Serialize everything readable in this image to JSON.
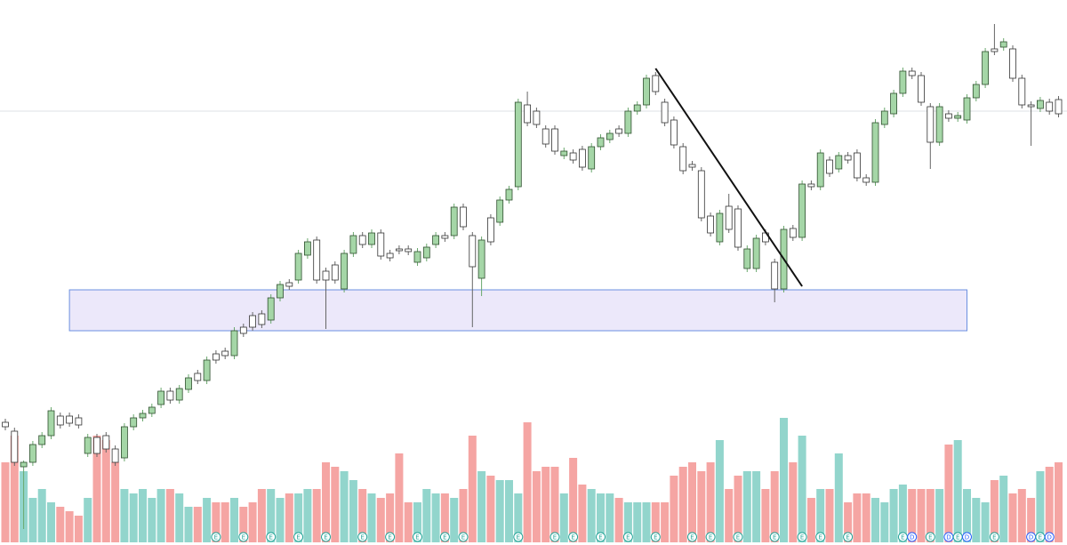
{
  "chart_data": {
    "type": "candlestick",
    "ylim": [
      0,
      613
    ],
    "vlim": [
      0,
      165
    ],
    "up_color": "#a5d6a7",
    "down_color": "#ffffff",
    "vol_up_color": "#92d5cc",
    "vol_down_color": "#f5a5a3",
    "candles": [
      [
        138,
        142,
        129,
        133
      ],
      [
        128,
        132,
        89,
        93
      ],
      [
        88,
        95,
        18,
        93
      ],
      [
        93,
        117,
        89,
        113
      ],
      [
        113,
        127,
        109,
        123
      ],
      [
        123,
        155,
        119,
        151
      ],
      [
        145,
        149,
        131,
        135
      ],
      [
        145,
        149,
        133,
        137
      ],
      [
        143,
        147,
        131,
        135
      ],
      [
        103,
        125,
        99,
        121
      ],
      [
        121,
        125,
        99,
        103
      ],
      [
        123,
        127,
        104,
        108
      ],
      [
        108,
        112,
        89,
        93
      ],
      [
        98,
        137,
        94,
        133
      ],
      [
        133,
        147,
        129,
        143
      ],
      [
        143,
        152,
        139,
        148
      ],
      [
        148,
        159,
        144,
        155
      ],
      [
        158,
        177,
        154,
        173
      ],
      [
        173,
        177,
        159,
        163
      ],
      [
        163,
        180,
        159,
        176
      ],
      [
        175,
        192,
        171,
        188
      ],
      [
        193,
        197,
        181,
        185
      ],
      [
        185,
        212,
        181,
        208
      ],
      [
        215,
        219,
        204,
        208
      ],
      [
        218,
        222,
        209,
        213
      ],
      [
        213,
        245,
        209,
        241
      ],
      [
        245,
        249,
        234,
        238
      ],
      [
        258,
        262,
        241,
        245
      ],
      [
        260,
        264,
        244,
        248
      ],
      [
        253,
        282,
        249,
        278
      ],
      [
        278,
        297,
        274,
        293
      ],
      [
        295,
        299,
        287,
        291
      ],
      [
        298,
        332,
        294,
        328
      ],
      [
        326,
        345,
        322,
        341
      ],
      [
        343,
        347,
        294,
        298
      ],
      [
        308,
        312,
        243,
        298
      ],
      [
        315,
        319,
        294,
        298
      ],
      [
        288,
        332,
        284,
        328
      ],
      [
        328,
        352,
        324,
        348
      ],
      [
        348,
        352,
        334,
        338
      ],
      [
        338,
        355,
        334,
        351
      ],
      [
        351,
        355,
        321,
        325
      ],
      [
        328,
        332,
        319,
        323
      ],
      [
        333,
        337,
        327,
        331
      ],
      [
        333,
        337,
        326,
        330
      ],
      [
        318,
        334,
        314,
        330
      ],
      [
        323,
        339,
        319,
        335
      ],
      [
        338,
        352,
        334,
        348
      ],
      [
        348,
        352,
        341,
        345
      ],
      [
        348,
        384,
        344,
        380
      ],
      [
        380,
        384,
        354,
        358
      ],
      [
        348,
        352,
        245,
        313
      ],
      [
        300,
        347,
        280,
        343
      ],
      [
        368,
        372,
        337,
        341
      ],
      [
        363,
        392,
        359,
        388
      ],
      [
        388,
        404,
        384,
        400
      ],
      [
        403,
        502,
        399,
        498
      ],
      [
        495,
        510,
        471,
        475
      ],
      [
        488,
        492,
        469,
        473
      ],
      [
        468,
        472,
        447,
        451
      ],
      [
        468,
        472,
        439,
        443
      ],
      [
        438,
        447,
        434,
        443
      ],
      [
        441,
        445,
        429,
        433
      ],
      [
        445,
        449,
        421,
        425
      ],
      [
        423,
        452,
        419,
        448
      ],
      [
        448,
        462,
        444,
        458
      ],
      [
        456,
        467,
        452,
        463
      ],
      [
        468,
        472,
        459,
        463
      ],
      [
        463,
        492,
        459,
        488
      ],
      [
        488,
        499,
        484,
        495
      ],
      [
        495,
        529,
        491,
        525
      ],
      [
        528,
        532,
        506,
        510
      ],
      [
        498,
        502,
        471,
        475
      ],
      [
        478,
        482,
        446,
        450
      ],
      [
        448,
        452,
        417,
        421
      ],
      [
        428,
        432,
        421,
        425
      ],
      [
        421,
        425,
        364,
        368
      ],
      [
        370,
        374,
        347,
        351
      ],
      [
        341,
        377,
        337,
        373
      ],
      [
        381,
        395,
        351,
        355
      ],
      [
        378,
        382,
        331,
        335
      ],
      [
        311,
        337,
        307,
        333
      ],
      [
        311,
        349,
        307,
        345
      ],
      [
        351,
        355,
        337,
        341
      ],
      [
        318,
        322,
        273,
        288
      ],
      [
        288,
        359,
        284,
        355
      ],
      [
        356,
        360,
        342,
        346
      ],
      [
        346,
        410,
        342,
        406
      ],
      [
        406,
        410,
        399,
        403
      ],
      [
        403,
        445,
        399,
        441
      ],
      [
        433,
        437,
        414,
        418
      ],
      [
        423,
        442,
        419,
        438
      ],
      [
        438,
        442,
        429,
        433
      ],
      [
        441,
        445,
        409,
        413
      ],
      [
        413,
        417,
        404,
        408
      ],
      [
        408,
        479,
        404,
        475
      ],
      [
        473,
        492,
        469,
        488
      ],
      [
        485,
        512,
        481,
        508
      ],
      [
        508,
        537,
        504,
        533
      ],
      [
        533,
        537,
        524,
        528
      ],
      [
        528,
        532,
        494,
        498
      ],
      [
        493,
        497,
        423,
        453
      ],
      [
        453,
        497,
        449,
        493
      ],
      [
        485,
        489,
        476,
        480
      ],
      [
        480,
        487,
        476,
        483
      ],
      [
        478,
        507,
        474,
        503
      ],
      [
        503,
        522,
        499,
        518
      ],
      [
        518,
        559,
        514,
        555
      ],
      [
        558,
        586,
        551,
        555
      ],
      [
        560,
        570,
        556,
        566
      ],
      [
        558,
        562,
        521,
        525
      ],
      [
        525,
        529,
        491,
        495
      ],
      [
        495,
        499,
        449,
        493
      ],
      [
        491,
        504,
        487,
        500
      ],
      [
        498,
        502,
        484,
        488
      ],
      [
        501,
        505,
        481,
        485
      ]
    ],
    "volume": [
      90,
      120,
      80,
      50,
      60,
      45,
      40,
      35,
      30,
      50,
      120,
      115,
      90,
      60,
      55,
      60,
      50,
      60,
      60,
      55,
      40,
      40,
      50,
      45,
      45,
      50,
      40,
      45,
      60,
      60,
      50,
      55,
      55,
      60,
      60,
      90,
      85,
      80,
      70,
      60,
      55,
      50,
      55,
      100,
      45,
      45,
      60,
      55,
      55,
      50,
      60,
      120,
      80,
      75,
      70,
      70,
      55,
      135,
      80,
      85,
      85,
      55,
      95,
      65,
      60,
      55,
      55,
      50,
      45,
      45,
      45,
      45,
      45,
      75,
      85,
      90,
      80,
      90,
      115,
      60,
      75,
      80,
      80,
      60,
      80,
      140,
      90,
      120,
      50,
      60,
      60,
      100,
      45,
      55,
      55,
      50,
      45,
      60,
      65,
      60,
      60,
      60,
      60,
      110,
      115,
      60,
      50,
      45,
      70,
      75,
      55,
      60,
      50,
      80,
      85,
      90
    ],
    "zone": {
      "top": 287,
      "bottom": 241,
      "from": 7,
      "to": 105
    },
    "trend_line": {
      "from": 71,
      "to": 87,
      "start": 536,
      "end": 291
    },
    "price_line": 488,
    "events": [
      {
        "index": 23,
        "label": "E"
      },
      {
        "index": 26,
        "label": "E"
      },
      {
        "index": 29,
        "label": "E"
      },
      {
        "index": 32,
        "label": "E"
      },
      {
        "index": 35,
        "label": "E"
      },
      {
        "index": 39,
        "label": "E"
      },
      {
        "index": 42,
        "label": "E"
      },
      {
        "index": 45,
        "label": "E"
      },
      {
        "index": 48,
        "label": "E"
      },
      {
        "index": 50,
        "label": "E"
      },
      {
        "index": 56,
        "label": "E"
      },
      {
        "index": 60,
        "label": "E"
      },
      {
        "index": 62,
        "label": "E"
      },
      {
        "index": 65,
        "label": "E"
      },
      {
        "index": 68,
        "label": "E"
      },
      {
        "index": 71,
        "label": "E"
      },
      {
        "index": 75,
        "label": "E"
      },
      {
        "index": 77,
        "label": "E"
      },
      {
        "index": 80,
        "label": "E"
      },
      {
        "index": 84,
        "label": "E"
      },
      {
        "index": 87,
        "label": "E"
      },
      {
        "index": 89,
        "label": "E"
      },
      {
        "index": 92,
        "label": "E"
      },
      {
        "index": 98,
        "label": "E"
      },
      {
        "index": 99,
        "label": "D"
      },
      {
        "index": 101,
        "label": "E"
      },
      {
        "index": 103,
        "label": "D"
      },
      {
        "index": 104,
        "label": "E"
      },
      {
        "index": 105,
        "label": "D"
      },
      {
        "index": 108,
        "label": "E"
      },
      {
        "index": 112,
        "label": "D"
      },
      {
        "index": 113,
        "label": "E"
      },
      {
        "index": 114,
        "label": "D"
      }
    ]
  }
}
